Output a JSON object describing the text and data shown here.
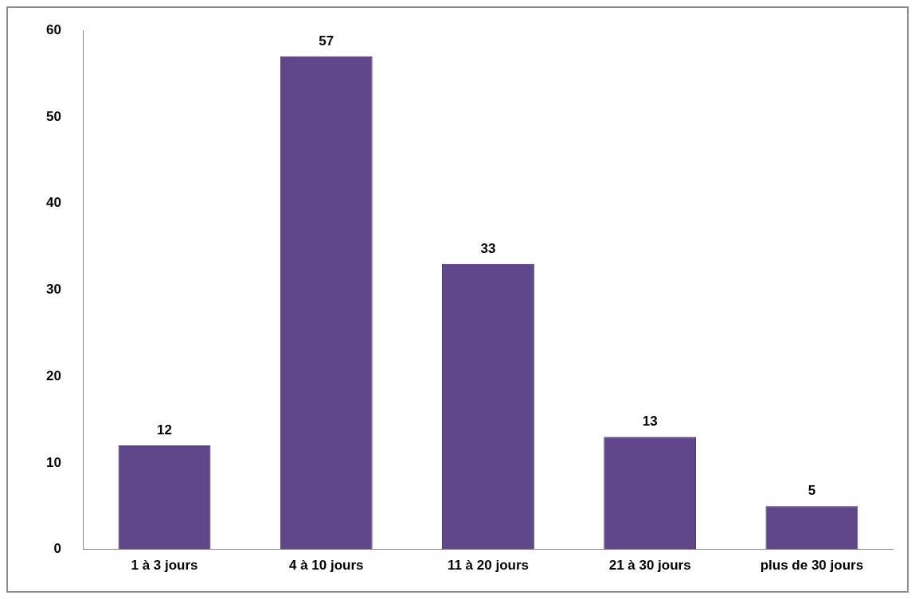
{
  "chart_data": {
    "type": "bar",
    "categories": [
      "1 à 3 jours",
      "4 à 10 jours",
      "11 à 20 jours",
      "21 à 30 jours",
      "plus de 30 jours"
    ],
    "values": [
      12,
      57,
      33,
      13,
      5
    ],
    "color": "#60468a",
    "ylim": [
      0,
      60
    ],
    "yticks": [
      0,
      10,
      20,
      30,
      40,
      50,
      60
    ],
    "grid": false,
    "data_labels": true,
    "legend": false
  }
}
